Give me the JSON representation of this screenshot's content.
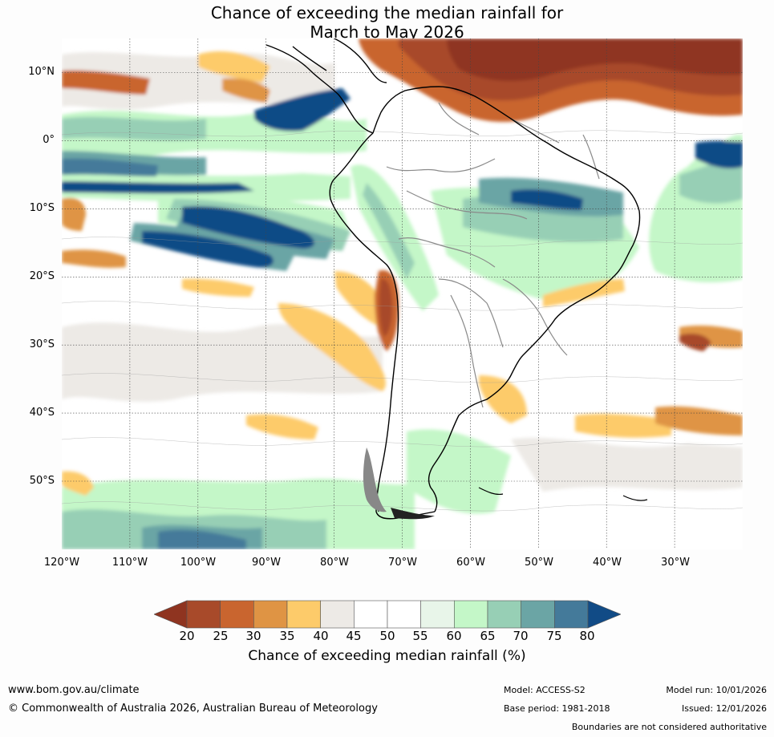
{
  "title": {
    "line1": "Chance of exceeding the median rainfall for",
    "line2": "March to May 2026"
  },
  "map": {
    "lat_labels": [
      "10°N",
      "0°",
      "10°S",
      "20°S",
      "30°S",
      "40°S",
      "50°S"
    ],
    "lon_labels": [
      "120°W",
      "110°W",
      "100°W",
      "90°W",
      "80°W",
      "70°W",
      "60°W",
      "50°W",
      "40°W",
      "30°W"
    ],
    "extent": {
      "lon_min": -120,
      "lon_max": -20,
      "lat_min": -60,
      "lat_max": 15
    }
  },
  "colorbar": {
    "ticks": [
      "20",
      "25",
      "30",
      "35",
      "40",
      "45",
      "50",
      "55",
      "60",
      "65",
      "70",
      "75",
      "80"
    ],
    "colors": [
      "#a84a2a",
      "#c9652f",
      "#df9444",
      "#fdcb6a",
      "#edeae6",
      "#ffffff",
      "#ffffff",
      "#e8f5e9",
      "#c4f7c8",
      "#97cfb5",
      "#6ba5a5",
      "#447a9a"
    ],
    "under_color": "#8f3420",
    "over_color": "#114b86",
    "label": "Chance of exceeding median rainfall (%)"
  },
  "footer": {
    "website": "www.bom.gov.au/climate",
    "copyright": "© Commonwealth of Australia 2026, Australian Bureau of Meteorology",
    "model": "Model: ACCESS-S2",
    "base_period": "Base period: 1981-2018",
    "model_run": "Model run: 10/01/2026",
    "issued": "Issued: 12/01/2026",
    "disclaimer": "Boundaries are not considered authoritative"
  }
}
